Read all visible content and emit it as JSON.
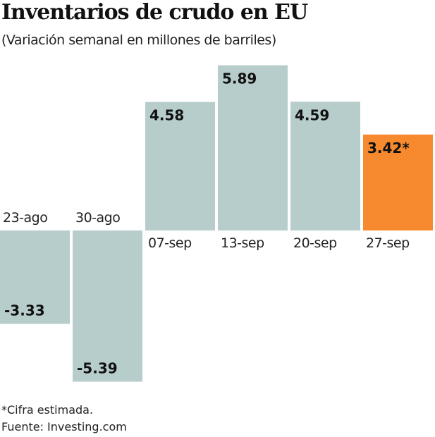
{
  "chart_data": {
    "type": "bar",
    "title": "Inventarios de crudo en EU",
    "subtitle": "(Variación semanal en millones de barriles)",
    "categories": [
      "23-ago",
      "30-ago",
      "07-sep",
      "13-sep",
      "20-sep",
      "27-sep"
    ],
    "values": [
      -3.33,
      -5.39,
      4.58,
      5.89,
      4.59,
      3.42
    ],
    "data_labels": [
      "-3.33",
      "-5.39",
      "4.58",
      "5.89",
      "4.59",
      "3.42*"
    ],
    "estimated": [
      false,
      false,
      false,
      false,
      false,
      true
    ],
    "colors": {
      "actual": "#b7cdcc",
      "estimated": "#f7892f"
    },
    "grid": false,
    "legend": "none",
    "notes": [
      "*Cifra estimada.",
      "Fuente: Investing.com"
    ]
  }
}
